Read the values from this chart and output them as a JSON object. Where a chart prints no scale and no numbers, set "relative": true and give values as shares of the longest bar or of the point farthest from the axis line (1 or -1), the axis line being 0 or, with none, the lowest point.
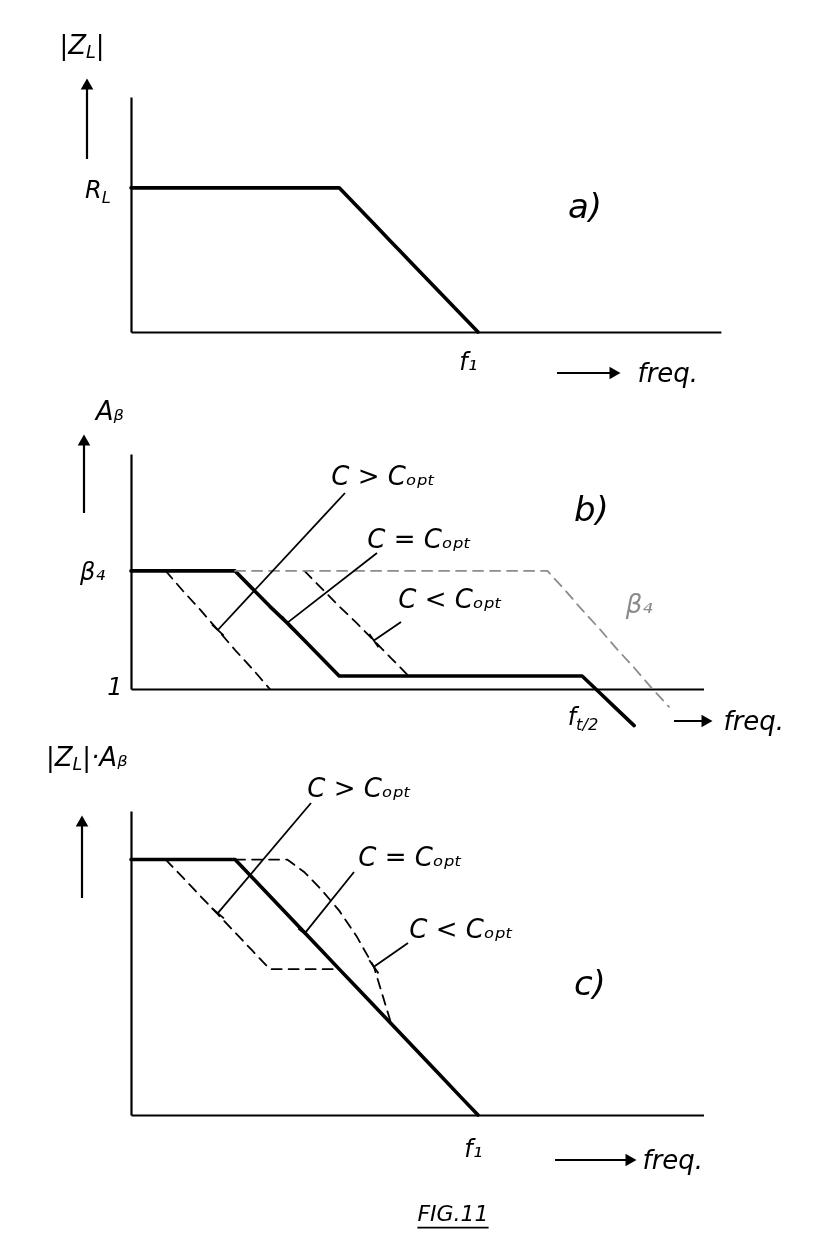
{
  "chart_data": [
    {
      "type": "line",
      "relative": true,
      "ylabel": "|Z$_{L}$|",
      "xlabel": "freq.",
      "categories": [
        null,
        null,
        null,
        null,
        null,
        null,
        null,
        null,
        null,
        null,
        null,
        null,
        null,
        null,
        null,
        null,
        null,
        null,
        null,
        null,
        null,
        null,
        null,
        null,
        null,
        null,
        null,
        null,
        null,
        null,
        null,
        null,
        null,
        null,
        null
      ],
      "annotations": [
        "R$_{L}$",
        "a)",
        "f₁"
      ],
      "series": [
        {
          "color": "#000000",
          "values": [
            1,
            1,
            1,
            1,
            1,
            1,
            1,
            1,
            1,
            1,
            1,
            1,
            1,
            0.875,
            0.75,
            0.625,
            0.5,
            0.375,
            0.25,
            0.125,
            0,
            null,
            null,
            null,
            null,
            null,
            null,
            null,
            null,
            null,
            null,
            null,
            null,
            null,
            null
          ]
        }
      ]
    },
    {
      "type": "line",
      "relative": true,
      "ylabel": "Aᵦ",
      "xlabel": "freq.",
      "categories": [
        null,
        null,
        null,
        null,
        null,
        null,
        null,
        null,
        null,
        null,
        null,
        null,
        null,
        null,
        null,
        null,
        null,
        null,
        null,
        null,
        null,
        null,
        null,
        null,
        null,
        null,
        null,
        null,
        null,
        null,
        null,
        null,
        null,
        null
      ],
      "annotations": [
        "β₄",
        "1",
        "C > Cₒₚₜ",
        "C = Cₒₚₜ",
        "C < Cₒₚₜ",
        "b)",
        "f$_{t/2}$"
      ],
      "series": [
        {
          "color": "#000000",
          "values": [
            1,
            1,
            1,
            1,
            1,
            1,
            1,
            0.85,
            0.7,
            0.56,
            0.41,
            0.26,
            0.11,
            0.11,
            0.11,
            0.11,
            0.11,
            0.11,
            0.11,
            0.11,
            0.11,
            0.11,
            0.11,
            0.11,
            0.11,
            0.11,
            0.11,
            -0.03,
            -0.17,
            -0.31,
            null,
            null,
            null,
            null
          ]
        },
        {
          "color": "#000000",
          "line_style": "dashed",
          "values": [
            null,
            null,
            1,
            0.83,
            0.67,
            0.5,
            0.33,
            0.17,
            0,
            null,
            null,
            null,
            null,
            null,
            null,
            null,
            null,
            null,
            null,
            null,
            null,
            null,
            null,
            null,
            null,
            null,
            null,
            null,
            null,
            null,
            null,
            null,
            null,
            null
          ]
        },
        {
          "color": "#000000",
          "line_style": "dashed",
          "values": [
            null,
            null,
            null,
            null,
            null,
            null,
            null,
            null,
            null,
            null,
            1,
            0.85,
            0.7,
            0.56,
            0.41,
            0.26,
            0.11,
            null,
            null,
            null,
            null,
            null,
            null,
            null,
            null,
            null,
            null,
            null,
            null,
            null,
            null,
            null,
            null,
            null
          ]
        },
        {
          "name": "β₄",
          "color": "#8c8c8c",
          "line_style": "dashed",
          "values": [
            null,
            null,
            null,
            null,
            null,
            null,
            1,
            1,
            1,
            1,
            1,
            1,
            1,
            1,
            1,
            1,
            1,
            1,
            1,
            1,
            1,
            1,
            1,
            1,
            1,
            0.84,
            0.67,
            0.51,
            0.34,
            0.18,
            0.01,
            -0.15,
            null,
            null
          ]
        }
      ]
    },
    {
      "type": "line",
      "relative": true,
      "ylabel": "|Z$_{L}$|·Aᵦ",
      "xlabel": "freq.",
      "categories": [
        null,
        null,
        null,
        null,
        null,
        null,
        null,
        null,
        null,
        null,
        null,
        null,
        null,
        null,
        null,
        null,
        null,
        null,
        null,
        null,
        null,
        null,
        null,
        null,
        null,
        null,
        null,
        null,
        null,
        null,
        null,
        null,
        null,
        null
      ],
      "annotations": [
        "C > Cₒₚₜ",
        "C = Cₒₚₜ",
        "C < Cₒₚₜ",
        "c)",
        "f₁",
        "FIG.11"
      ],
      "series": [
        {
          "color": "#000000",
          "values": [
            1,
            1,
            1,
            1,
            1,
            1,
            1,
            0.929,
            0.857,
            0.786,
            0.714,
            0.643,
            0.571,
            0.5,
            0.429,
            0.357,
            0.286,
            0.214,
            0.143,
            0.071,
            0,
            null,
            null,
            null,
            null,
            null,
            null,
            null,
            null,
            null,
            null,
            null,
            null,
            null
          ]
        },
        {
          "color": "#000000",
          "line_style": "dashed",
          "values": [
            null,
            null,
            1,
            0.929,
            0.857,
            0.786,
            0.714,
            0.643,
            0.571,
            0.571,
            0.571,
            0.571,
            0.571,
            null,
            null,
            null,
            null,
            null,
            null,
            null,
            null,
            null,
            null,
            null,
            null,
            null,
            null,
            null,
            null,
            null,
            null,
            null,
            null,
            null
          ]
        },
        {
          "color": "#000000",
          "line_style": "dashed",
          "values": [
            null,
            null,
            null,
            null,
            null,
            null,
            1,
            1,
            1,
            1,
            0.95,
            0.88,
            0.8,
            0.7,
            0.58,
            0.357,
            null,
            null,
            null,
            null,
            null,
            null,
            null,
            null,
            null,
            null,
            null,
            null,
            null,
            null,
            null,
            null,
            null,
            null
          ]
        }
      ]
    }
  ]
}
